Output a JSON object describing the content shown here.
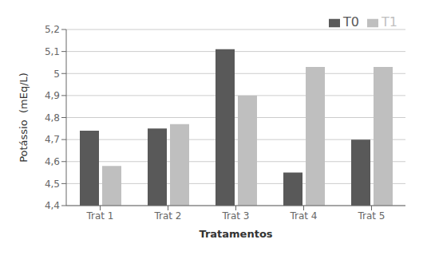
{
  "chart_data": {
    "type": "bar",
    "categories": [
      "Trat 1",
      "Trat 2",
      "Trat 3",
      "Trat 4",
      "Trat 5"
    ],
    "series": [
      {
        "name": "T0",
        "color": "#595959",
        "values": [
          4.74,
          4.75,
          5.11,
          4.55,
          4.7
        ]
      },
      {
        "name": "T1",
        "color": "#bfbfbf",
        "values": [
          4.58,
          4.77,
          4.9,
          5.03,
          5.03
        ]
      }
    ],
    "xlabel": "Tratamentos",
    "ylabel": "Potássio  (mEq/L)",
    "ylim": [
      4.4,
      5.2
    ],
    "yticks": [
      {
        "value": 4.4,
        "label": "4,4"
      },
      {
        "value": 4.5,
        "label": "4,5"
      },
      {
        "value": 4.6,
        "label": "4,6"
      },
      {
        "value": 4.7,
        "label": "4,7"
      },
      {
        "value": 4.8,
        "label": "4,8"
      },
      {
        "value": 4.9,
        "label": "4,9"
      },
      5,
      {
        "value": 5.1,
        "label": "5,1"
      },
      {
        "value": 5.2,
        "label": "5,2"
      }
    ],
    "grid": true,
    "legend": "upper right"
  }
}
